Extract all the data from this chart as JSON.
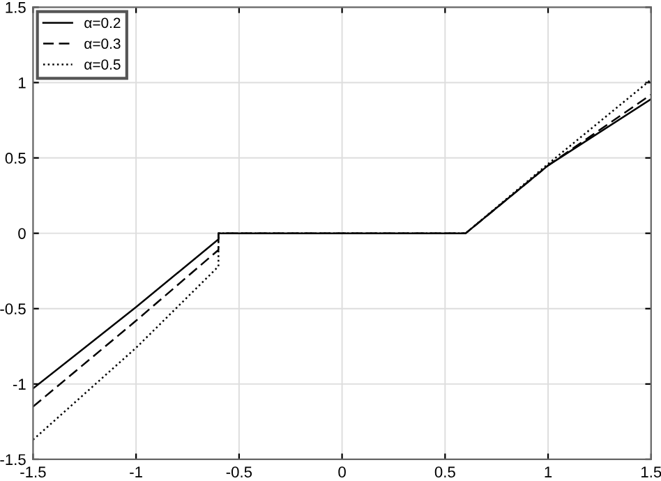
{
  "chart_data": {
    "type": "line",
    "xlim": [
      -1.5,
      1.5
    ],
    "ylim": [
      -1.5,
      1.5
    ],
    "xticks": [
      -1.5,
      -1,
      -0.5,
      0,
      0.5,
      1,
      1.5
    ],
    "yticks": [
      -1.5,
      -1,
      -0.5,
      0,
      0.5,
      1,
      1.5
    ],
    "grid": true,
    "legend": "top left",
    "series": [
      {
        "name": "α=0.2",
        "color": "#000000",
        "line_style": "solid",
        "x": [
          -1.5,
          -1.0,
          -0.6,
          -0.6,
          0.6,
          1.0,
          1.5
        ],
        "values": [
          -1.03,
          -0.49,
          -0.04,
          0,
          0,
          0.45,
          0.89
        ]
      },
      {
        "name": "α=0.3",
        "color": "#000000",
        "line_style": "dashed",
        "x": [
          -1.5,
          -1.0,
          -0.6,
          -0.6,
          0.6,
          1.0,
          1.5
        ],
        "values": [
          -1.15,
          -0.58,
          -0.11,
          0,
          0,
          0.45,
          0.92
        ]
      },
      {
        "name": "α=0.5",
        "color": "#000000",
        "line_style": "dotted",
        "x": [
          -1.5,
          -1.0,
          -0.6,
          -0.6,
          0.6,
          1.0,
          1.5
        ],
        "values": [
          -1.37,
          -0.76,
          -0.22,
          0,
          0,
          0.46,
          1.02
        ]
      }
    ]
  }
}
